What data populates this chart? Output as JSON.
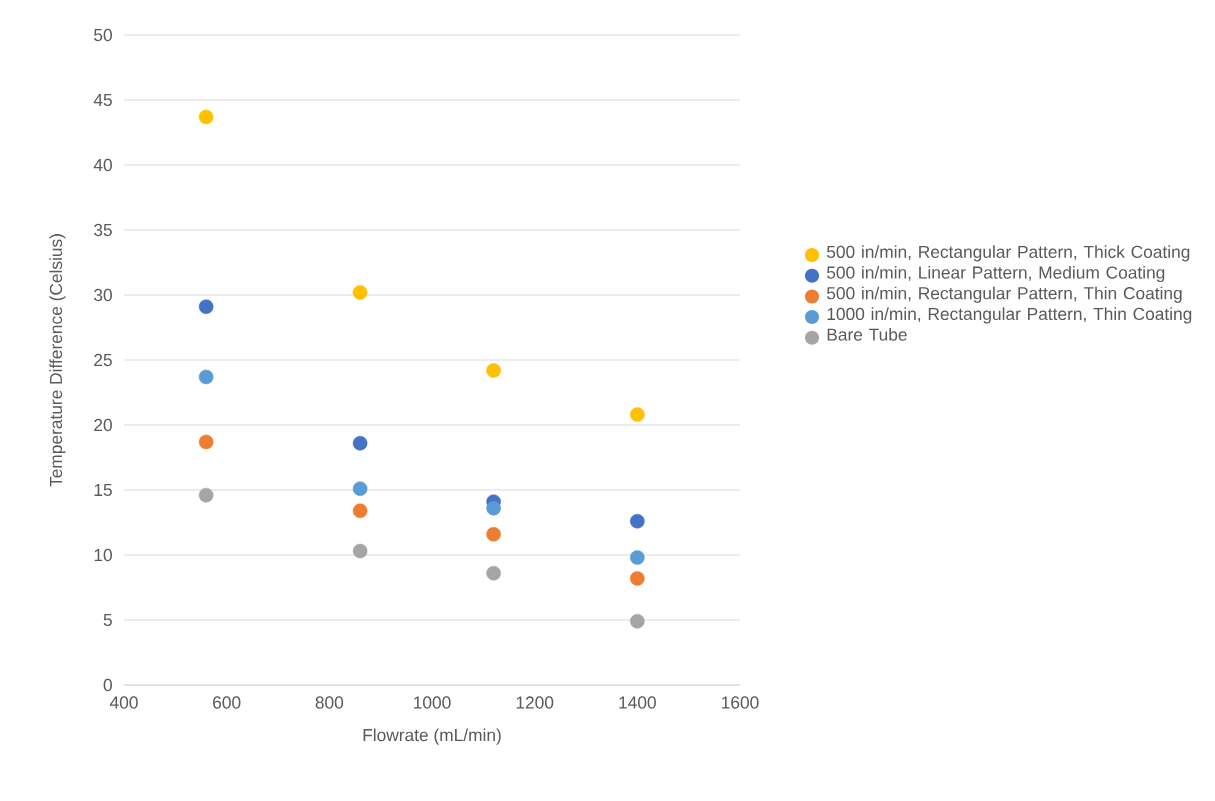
{
  "chart_data": {
    "type": "scatter",
    "xlabel": "Flowrate (mL/min)",
    "ylabel": "Temperature Difference (Celsius)",
    "xlim": [
      400,
      1600
    ],
    "xticks": [
      400,
      600,
      800,
      1000,
      1200,
      1400,
      1600
    ],
    "ylim": [
      0,
      50
    ],
    "yticks": [
      0,
      5,
      10,
      15,
      20,
      25,
      30,
      35,
      40,
      45,
      50
    ],
    "grid": "y",
    "legend": "right",
    "marker": "circle",
    "x": [
      560,
      860,
      1120,
      1400
    ],
    "series": [
      {
        "name": "500 in/min, Rectangular Pattern, Thick Coating",
        "color": "#ffc000",
        "values": [
          43.7,
          30.2,
          24.2,
          20.8
        ]
      },
      {
        "name": "500 in/min, Linear Pattern, Medium Coating",
        "color": "#4472c4",
        "values": [
          29.1,
          18.6,
          14.1,
          12.6
        ]
      },
      {
        "name": "500 in/min, Rectangular Pattern, Thin Coating",
        "color": "#ed7d31",
        "values": [
          18.7,
          13.4,
          11.6,
          8.2
        ]
      },
      {
        "name": "1000 in/min, Rectangular Pattern, Thin Coating",
        "color": "#5b9bd5",
        "values": [
          23.7,
          15.1,
          13.6,
          9.8
        ]
      },
      {
        "name": "Bare Tube",
        "color": "#a5a5a5",
        "values": [
          14.6,
          10.3,
          8.6,
          4.9
        ]
      }
    ]
  }
}
